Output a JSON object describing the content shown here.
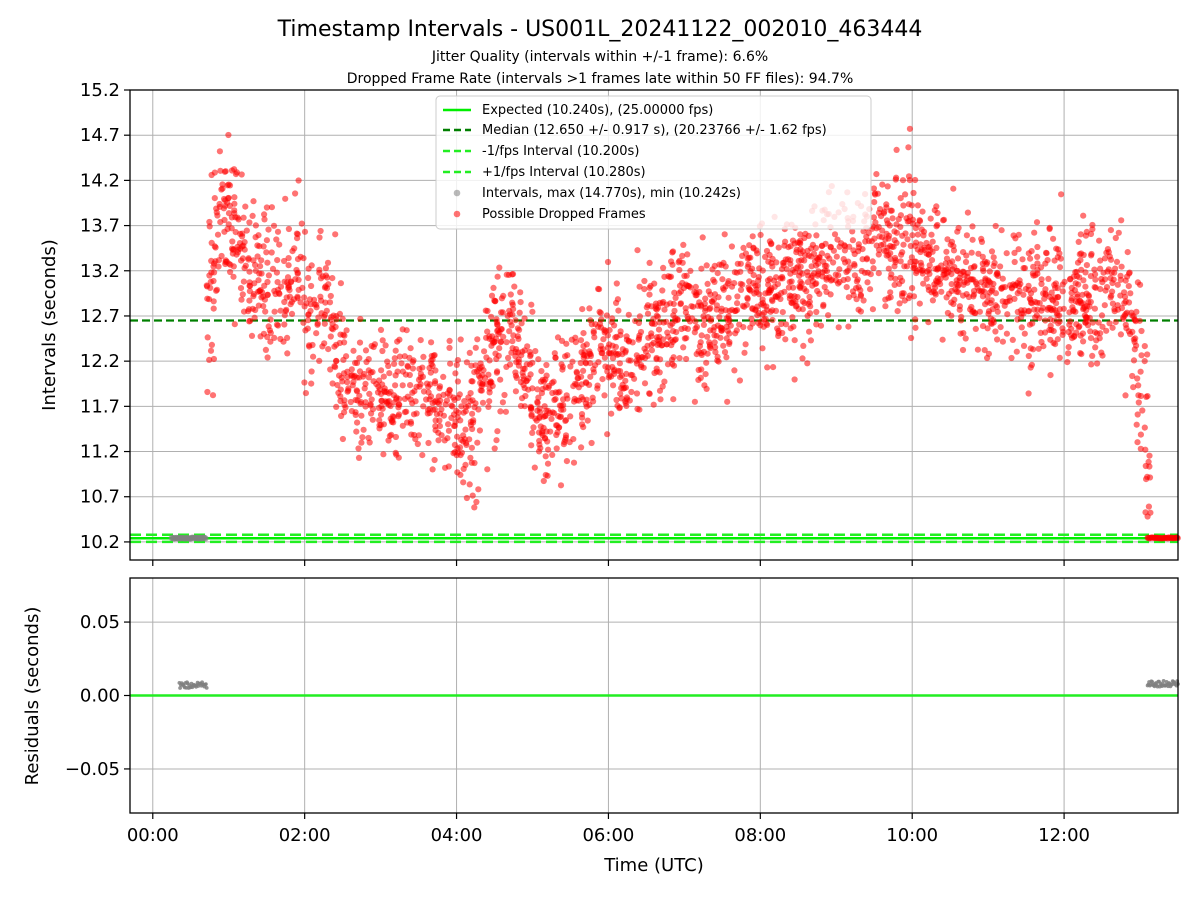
{
  "chart_data": [
    {
      "type": "scatter",
      "title": "Timestamp Intervals - US001L_20241122_002010_463444",
      "subtitles": [
        "Jitter Quality (intervals within +/-1 frame): 6.6%",
        "Dropped Frame Rate (intervals >1 frames late within 50 FF files): 94.7%"
      ],
      "ylabel": "Intervals (seconds)",
      "xlabel": "",
      "xlim_hours": [
        -0.3,
        13.5
      ],
      "ylim": [
        10.0,
        15.2
      ],
      "yticks": [
        10.2,
        10.7,
        11.2,
        11.7,
        12.2,
        12.7,
        13.2,
        13.7,
        14.2,
        14.7,
        15.2
      ],
      "ytick_labels": [
        "10.2",
        "10.7",
        "11.2",
        "11.7",
        "12.2",
        "12.7",
        "13.2",
        "13.7",
        "14.2",
        "14.7",
        "15.2"
      ],
      "grid": true,
      "legend_position": "upper center",
      "lines": {
        "expected": {
          "label": "Expected (10.240s), (25.00000 fps)",
          "y": 10.24,
          "color": "#00ee00",
          "style": "solid"
        },
        "median": {
          "label": "Median (12.650 +/- 0.917 s), (20.23766 +/- 1.62 fps)",
          "y": 12.65,
          "color": "#007f00",
          "style": "dashed"
        },
        "minus_fps": {
          "label": "-1/fps Interval (10.200s)",
          "y": 10.2,
          "color": "#22ee22",
          "style": "dashed"
        },
        "plus_fps": {
          "label": "+1/fps Interval (10.280s)",
          "y": 10.28,
          "color": "#22ee22",
          "style": "dashed"
        }
      },
      "scatter_series": [
        {
          "name": "Intervals, max (14.770s), min (10.242s)",
          "color": "#808080"
        },
        {
          "name": "Possible Dropped Frames",
          "color": "#ff0000"
        }
      ],
      "dropped_frame_trend": {
        "x_hours": [
          0.7,
          0.9,
          1.1,
          1.3,
          1.5,
          1.7,
          1.9,
          2.05,
          2.25,
          2.5,
          2.75,
          3.0,
          3.25,
          3.5,
          3.75,
          4.0,
          4.25,
          4.5,
          4.75,
          4.95,
          5.2,
          5.45,
          5.7,
          5.95,
          6.2,
          6.45,
          6.7,
          6.95,
          7.2,
          7.45,
          7.7,
          7.95,
          8.2,
          8.45,
          8.7,
          8.95,
          9.2,
          9.45,
          9.7,
          9.95,
          10.2,
          10.45,
          10.7,
          10.95,
          11.2,
          11.45,
          11.7,
          11.95,
          12.2,
          12.45,
          12.7,
          12.9,
          13.0,
          13.1,
          13.15
        ],
        "y_center": [
          12.4,
          13.9,
          13.6,
          13.2,
          13.1,
          12.9,
          13.4,
          12.6,
          13.0,
          12.0,
          11.9,
          11.8,
          11.8,
          11.9,
          11.7,
          11.6,
          11.7,
          12.5,
          12.7,
          11.8,
          11.6,
          11.7,
          12.2,
          12.3,
          12.1,
          12.4,
          12.6,
          12.8,
          12.6,
          12.7,
          12.8,
          12.9,
          13.0,
          13.1,
          13.2,
          13.3,
          13.4,
          13.5,
          13.6,
          13.5,
          13.3,
          13.2,
          13.1,
          13.0,
          13.0,
          12.9,
          12.9,
          12.8,
          12.9,
          13.0,
          13.1,
          12.6,
          12.0,
          11.3,
          10.4
        ],
        "y_spread": [
          0.8,
          0.4,
          0.4,
          0.4,
          0.4,
          0.4,
          0.4,
          0.5,
          0.4,
          0.4,
          0.35,
          0.35,
          0.35,
          0.35,
          0.35,
          0.4,
          0.45,
          0.45,
          0.35,
          0.35,
          0.35,
          0.35,
          0.35,
          0.35,
          0.35,
          0.35,
          0.35,
          0.35,
          0.35,
          0.35,
          0.35,
          0.35,
          0.35,
          0.35,
          0.35,
          0.35,
          0.35,
          0.35,
          0.4,
          0.4,
          0.35,
          0.35,
          0.35,
          0.35,
          0.35,
          0.35,
          0.35,
          0.35,
          0.35,
          0.35,
          0.35,
          0.4,
          0.5,
          0.6,
          0.2
        ]
      },
      "peaks": [
        {
          "label": "max",
          "x_hours": 9.97,
          "y": 14.77
        }
      ],
      "baseline_clusters": [
        {
          "x_start_hours": 0.25,
          "x_end_hours": 0.7,
          "y": 10.242,
          "series": "grey"
        },
        {
          "x_start_hours": 13.1,
          "x_end_hours": 13.5,
          "y": 10.245,
          "series": "red"
        }
      ]
    },
    {
      "type": "scatter",
      "title": "",
      "xlabel": "Time (UTC)",
      "ylabel": "Residuals (seconds)",
      "xlim_hours": [
        -0.3,
        13.5
      ],
      "ylim": [
        -0.08,
        0.08
      ],
      "yticks": [
        -0.05,
        0.0,
        0.05
      ],
      "ytick_labels": [
        "−0.05",
        "0.00",
        "0.05"
      ],
      "xticks_hours": [
        0,
        2,
        4,
        6,
        8,
        10,
        12
      ],
      "xtick_labels": [
        "00:00",
        "02:00",
        "04:00",
        "06:00",
        "08:00",
        "10:00",
        "12:00"
      ],
      "grid": true,
      "zero_line": {
        "y": 0.0,
        "color": "#22ee22"
      },
      "residual_clusters": [
        {
          "x_start_hours": 0.35,
          "x_end_hours": 0.72,
          "y": 0.007,
          "color": "#808080"
        },
        {
          "x_start_hours": 13.1,
          "x_end_hours": 13.5,
          "y": 0.008,
          "color": "#808080"
        }
      ]
    }
  ]
}
